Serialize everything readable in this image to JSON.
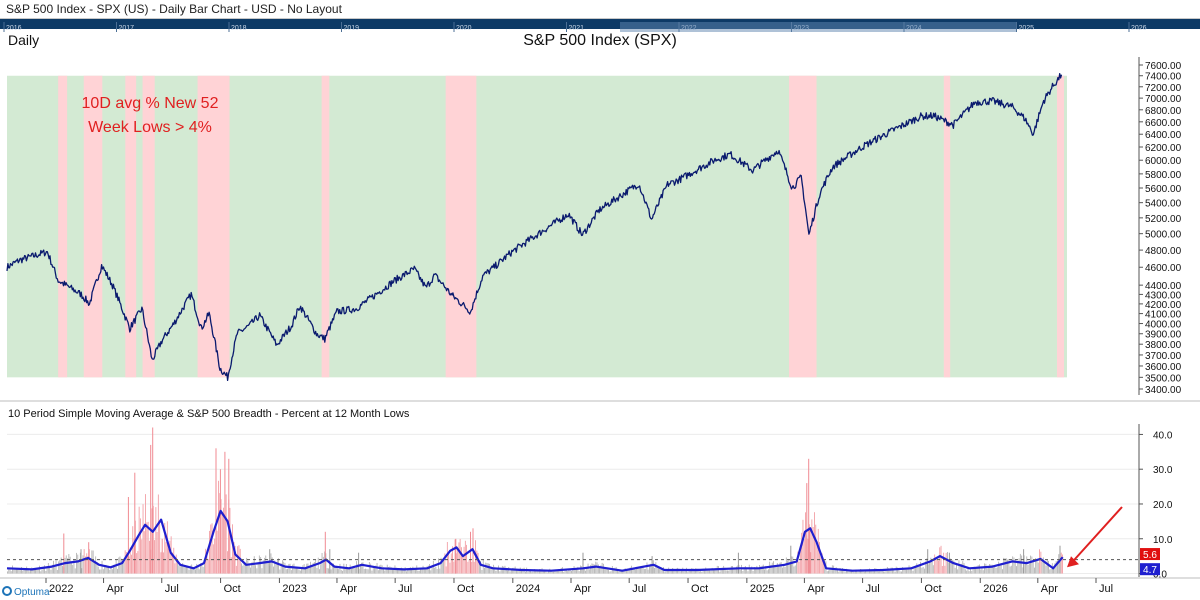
{
  "window": {
    "title": "S&P 500 Index - SPX (US) - Daily Bar Chart - USD - No Layout"
  },
  "navigator": {
    "years": [
      "2016",
      "2017",
      "2018",
      "2019",
      "2020",
      "2021",
      "2022",
      "2023",
      "2024",
      "2025",
      "2026"
    ]
  },
  "colors": {
    "price_line": "#0a1a6e",
    "bg_green": "#d3ead3",
    "bg_red": "#ffd3d6",
    "sma_line": "#1f1fcf",
    "annotation": "#e02020",
    "badge_red": "#e01010",
    "badge_blue": "#1f1fcf"
  },
  "chart_data": [
    {
      "type": "line",
      "title": "S&P 500 Index (SPX)",
      "period_label": "Daily",
      "annotation": "10D avg % New 52 Week Lows > 4%",
      "annotation_lines": [
        "10D avg % New 52",
        "Week Lows > 4%"
      ],
      "y_ticks": [
        3400,
        3500,
        3600,
        3700,
        3800,
        3900,
        4000,
        4100,
        4200,
        4300,
        4400,
        4600,
        4800,
        5000,
        5200,
        5400,
        5600,
        5800,
        6000,
        6200,
        6400,
        6600,
        6800,
        7000,
        7200,
        7400,
        7600
      ],
      "y_tick_labels": [
        "3400.00",
        "3500.00",
        "3600.00",
        "3700.00",
        "3800.00",
        "3900.00",
        "4000.00",
        "4100.00",
        "4200.00",
        "4300.00",
        "4400.00",
        "4600.00",
        "4800.00",
        "5000.00",
        "5200.00",
        "5400.00",
        "5600.00",
        "5800.00",
        "6000.00",
        "6200.00",
        "6400.00",
        "6600.00",
        "6800.00",
        "7000.00",
        "7200.00",
        "7400.00",
        "7600.00"
      ],
      "y_scale": "log",
      "ylim": [
        3400,
        7600
      ],
      "xlim": [
        "2021-11-01",
        "2026-08-31"
      ],
      "series": [
        {
          "dates": [
            "2021-11-01",
            "2021-11-20",
            "2022-01-03",
            "2022-01-20",
            "2022-02-25",
            "2022-03-10",
            "2022-03-29",
            "2022-04-15",
            "2022-05-12",
            "2022-05-31",
            "2022-06-16",
            "2022-07-01",
            "2022-07-20",
            "2022-08-16",
            "2022-09-01",
            "2022-09-13",
            "2022-09-30",
            "2022-10-12",
            "2022-10-27",
            "2022-11-15",
            "2022-12-01",
            "2022-12-28",
            "2023-01-20",
            "2023-02-02",
            "2023-02-28",
            "2023-03-13",
            "2023-04-01",
            "2023-05-01",
            "2023-06-01",
            "2023-06-30",
            "2023-07-31",
            "2023-08-18",
            "2023-09-01",
            "2023-09-28",
            "2023-10-27",
            "2023-11-15",
            "2023-12-01",
            "2023-12-29",
            "2024-02-01",
            "2024-03-28",
            "2024-04-19",
            "2024-05-15",
            "2024-07-16",
            "2024-08-05",
            "2024-08-30",
            "2024-09-18",
            "2024-11-11",
            "2024-12-06",
            "2025-01-10",
            "2025-02-19",
            "2025-03-13",
            "2025-03-27",
            "2025-04-08",
            "2025-04-25",
            "2025-05-15",
            "2025-06-30",
            "2025-08-15",
            "2025-09-30",
            "2025-10-20",
            "2025-11-20",
            "2025-12-24",
            "2026-01-20",
            "2026-02-20",
            "2026-03-12",
            "2026-03-25",
            "2026-04-10",
            "2026-04-24",
            "2026-05-08"
          ],
          "values": [
            4600,
            4680,
            4780,
            4450,
            4300,
            4200,
            4620,
            4400,
            3950,
            4150,
            3650,
            3830,
            4000,
            4300,
            3950,
            4100,
            3580,
            3500,
            3900,
            3980,
            4080,
            3790,
            3980,
            4180,
            3900,
            3850,
            4120,
            4150,
            4300,
            4450,
            4580,
            4370,
            4510,
            4290,
            4120,
            4500,
            4590,
            4770,
            4950,
            5250,
            4980,
            5300,
            5660,
            5180,
            5650,
            5720,
            6000,
            6090,
            5850,
            6150,
            5600,
            5750,
            4980,
            5520,
            5900,
            6200,
            6450,
            6690,
            6700,
            6550,
            6930,
            6950,
            6850,
            6650,
            6400,
            6950,
            7200,
            7420
          ]
        }
      ],
      "highlight_periods": [
        [
          "2022-01-20",
          "2022-02-03"
        ],
        [
          "2022-03-01",
          "2022-03-30"
        ],
        [
          "2022-05-05",
          "2022-05-22"
        ],
        [
          "2022-06-01",
          "2022-06-20"
        ],
        [
          "2022-08-26",
          "2022-10-15"
        ],
        [
          "2023-03-08",
          "2023-03-20"
        ],
        [
          "2023-09-18",
          "2023-11-05"
        ],
        [
          "2025-03-08",
          "2025-04-20"
        ],
        [
          "2025-11-05",
          "2025-11-15"
        ],
        [
          "2026-05-01",
          "2026-05-12"
        ]
      ]
    },
    {
      "type": "bar",
      "title": "10 Period Simple Moving Average & S&P 500 Breadth - Percent at 12 Month Lows",
      "y_ticks": [
        0,
        10,
        20,
        30,
        40
      ],
      "y_tick_labels": [
        "0.0",
        "10.0",
        "20.0",
        "30.0",
        "40.0"
      ],
      "ylim": [
        -1,
        43
      ],
      "x_tick_labels": [
        "2022",
        "Apr",
        "Jul",
        "Oct",
        "2023",
        "Apr",
        "Jul",
        "Oct",
        "2024",
        "Apr",
        "Jul",
        "Oct",
        "2025",
        "Apr",
        "Jul",
        "Oct",
        "2026",
        "Apr",
        "Jul"
      ],
      "x_tick_dates": [
        "2022-01-01",
        "2022-04-01",
        "2022-07-01",
        "2022-10-01",
        "2023-01-01",
        "2023-04-01",
        "2023-07-01",
        "2023-10-01",
        "2024-01-01",
        "2024-04-01",
        "2024-07-01",
        "2024-10-01",
        "2025-01-01",
        "2025-04-01",
        "2025-07-01",
        "2025-10-01",
        "2026-01-01",
        "2026-04-01",
        "2026-07-01"
      ],
      "threshold": 4,
      "latest_value_label": "5.6",
      "latest_sma_label": "4.7",
      "breadth_spikes": [
        {
          "date": "2022-01-28",
          "value": 11.5
        },
        {
          "date": "2022-02-24",
          "value": 7
        },
        {
          "date": "2022-03-08",
          "value": 9
        },
        {
          "date": "2022-05-09",
          "value": 22
        },
        {
          "date": "2022-05-19",
          "value": 29
        },
        {
          "date": "2022-06-13",
          "value": 37
        },
        {
          "date": "2022-06-16",
          "value": 42
        },
        {
          "date": "2022-07-01",
          "value": 10
        },
        {
          "date": "2022-09-23",
          "value": 36
        },
        {
          "date": "2022-09-30",
          "value": 30
        },
        {
          "date": "2022-10-07",
          "value": 35
        },
        {
          "date": "2022-10-13",
          "value": 33
        },
        {
          "date": "2022-10-21",
          "value": 9
        },
        {
          "date": "2022-12-16",
          "value": 7
        },
        {
          "date": "2023-03-13",
          "value": 12
        },
        {
          "date": "2023-03-20",
          "value": 7
        },
        {
          "date": "2023-05-04",
          "value": 6
        },
        {
          "date": "2023-10-03",
          "value": 10
        },
        {
          "date": "2023-10-26",
          "value": 12
        },
        {
          "date": "2023-10-30",
          "value": 13
        },
        {
          "date": "2024-04-19",
          "value": 6
        },
        {
          "date": "2024-08-05",
          "value": 5
        },
        {
          "date": "2024-12-18",
          "value": 6
        },
        {
          "date": "2025-03-10",
          "value": 8
        },
        {
          "date": "2025-04-04",
          "value": 26
        },
        {
          "date": "2025-04-07",
          "value": 33
        },
        {
          "date": "2025-04-09",
          "value": 13
        },
        {
          "date": "2025-10-10",
          "value": 7
        },
        {
          "date": "2025-11-13",
          "value": 6
        },
        {
          "date": "2026-03-09",
          "value": 7
        },
        {
          "date": "2026-05-05",
          "value": 8
        }
      ],
      "series": [
        {
          "name": "10 Period Simple Moving Average",
          "dates": [
            "2021-11-01",
            "2021-12-10",
            "2022-01-10",
            "2022-01-31",
            "2022-02-20",
            "2022-03-08",
            "2022-03-25",
            "2022-04-12",
            "2022-04-30",
            "2022-05-12",
            "2022-05-26",
            "2022-06-05",
            "2022-06-17",
            "2022-06-30",
            "2022-07-15",
            "2022-07-30",
            "2022-08-20",
            "2022-09-05",
            "2022-09-20",
            "2022-10-01",
            "2022-10-12",
            "2022-10-24",
            "2022-11-10",
            "2022-12-01",
            "2022-12-20",
            "2023-01-10",
            "2023-02-10",
            "2023-03-05",
            "2023-03-15",
            "2023-03-28",
            "2023-04-20",
            "2023-05-10",
            "2023-06-10",
            "2023-07-15",
            "2023-08-20",
            "2023-09-10",
            "2023-09-25",
            "2023-10-05",
            "2023-10-15",
            "2023-10-30",
            "2023-11-12",
            "2023-12-01",
            "2024-01-15",
            "2024-03-01",
            "2024-04-20",
            "2024-05-10",
            "2024-06-20",
            "2024-08-08",
            "2024-08-25",
            "2024-10-15",
            "2024-12-20",
            "2025-01-20",
            "2025-03-01",
            "2025-03-20",
            "2025-04-02",
            "2025-04-10",
            "2025-04-20",
            "2025-05-05",
            "2025-06-15",
            "2025-08-01",
            "2025-09-15",
            "2025-10-15",
            "2025-10-30",
            "2025-11-20",
            "2025-12-15",
            "2026-01-20",
            "2026-02-20",
            "2026-03-15",
            "2026-04-05",
            "2026-04-25",
            "2026-05-10"
          ],
          "values": [
            1.5,
            1.2,
            2.0,
            3.0,
            3.5,
            4.5,
            2.5,
            1.8,
            3.0,
            6.5,
            11.0,
            14.0,
            12.0,
            15.5,
            6.0,
            2.5,
            1.5,
            3.0,
            12.0,
            18.0,
            15.0,
            5.5,
            2.5,
            3.0,
            3.5,
            2.0,
            1.5,
            3.0,
            4.0,
            2.0,
            1.5,
            2.5,
            1.5,
            1.2,
            1.5,
            3.0,
            6.5,
            7.5,
            5.0,
            7.0,
            2.5,
            1.5,
            1.0,
            0.8,
            1.5,
            2.0,
            0.8,
            2.5,
            1.0,
            1.0,
            1.5,
            1.5,
            2.5,
            3.5,
            12.0,
            13.0,
            9.0,
            1.5,
            0.8,
            1.0,
            1.5,
            3.5,
            5.0,
            3.0,
            1.5,
            2.0,
            3.5,
            3.0,
            4.2,
            1.5,
            4.7
          ]
        }
      ]
    }
  ],
  "brand": {
    "logo_text": "Optuma"
  }
}
